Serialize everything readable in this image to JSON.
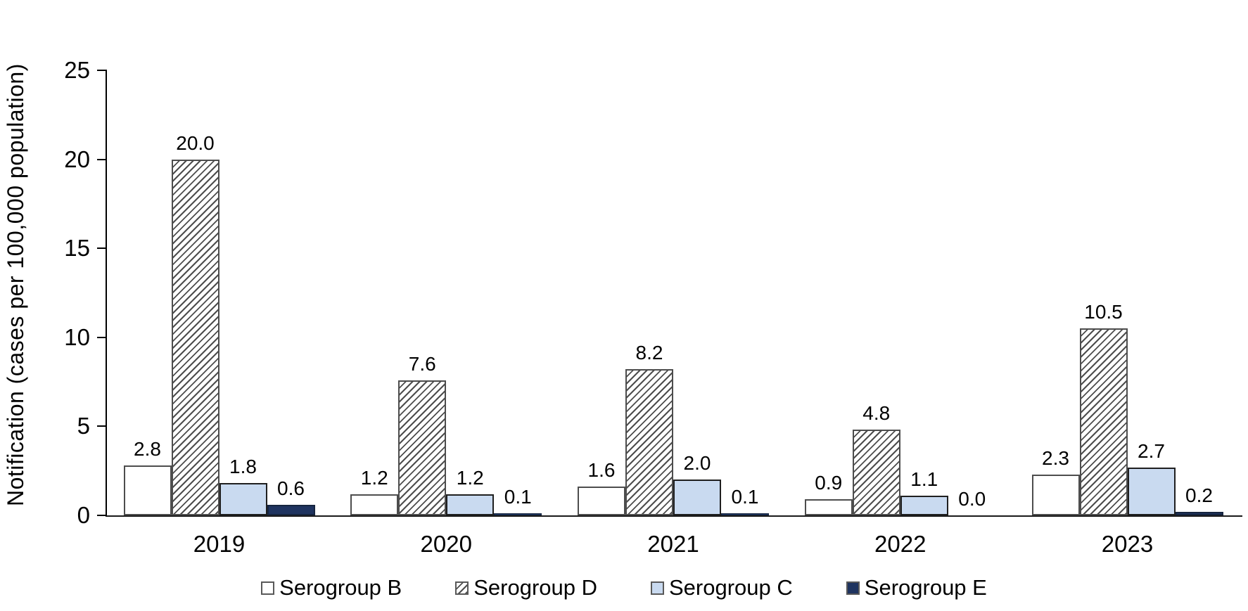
{
  "chart_data": {
    "type": "bar",
    "title": "",
    "xlabel": "",
    "ylabel": "Notification (cases per 100,000 population)",
    "ylim": [
      0,
      25
    ],
    "yticks": [
      0,
      5,
      10,
      15,
      20,
      25
    ],
    "grid": false,
    "legend_position": "bottom",
    "categories": [
      "2019",
      "2020",
      "2021",
      "2022",
      "2023"
    ],
    "series": [
      {
        "name": "Serogroup B",
        "values": [
          2.8,
          1.2,
          1.6,
          0.9,
          2.3
        ],
        "labels": [
          "2.8",
          "1.2",
          "1.6",
          "0.9",
          "2.3"
        ],
        "fill": "#ffffff",
        "pattern": "solid",
        "border": "#4d4d4d"
      },
      {
        "name": "Serogroup D",
        "values": [
          20.0,
          7.6,
          8.2,
          4.8,
          10.5
        ],
        "labels": [
          "20.0",
          "7.6",
          "8.2",
          "4.8",
          "10.5"
        ],
        "fill": "#ffffff",
        "pattern": "diagonal-hatch",
        "hatch_color": "#4d4d4d",
        "border": "#4d4d4d"
      },
      {
        "name": "Serogroup C",
        "values": [
          1.8,
          1.2,
          2.0,
          1.1,
          2.7
        ],
        "labels": [
          "1.8",
          "1.2",
          "2.0",
          "1.1",
          "2.7"
        ],
        "fill": "#c9daf0",
        "pattern": "solid",
        "border": "#1f1f1f"
      },
      {
        "name": "Serogroup E",
        "values": [
          0.6,
          0.1,
          0.1,
          0.0,
          0.2
        ],
        "labels": [
          "0.6",
          "0.1",
          "0.1",
          "0.0",
          "0.2"
        ],
        "fill": "#1f3460",
        "pattern": "solid",
        "border": "#16253f"
      }
    ]
  }
}
